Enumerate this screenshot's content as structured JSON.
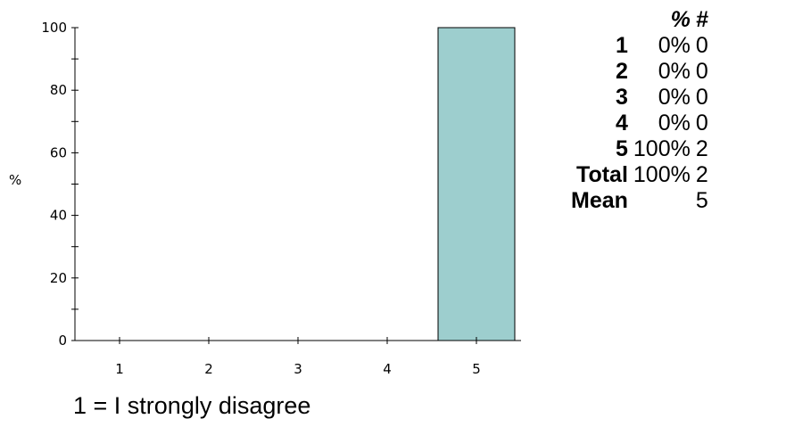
{
  "chart_data": {
    "type": "bar",
    "categories": [
      "1",
      "2",
      "3",
      "4",
      "5"
    ],
    "values": [
      0,
      0,
      0,
      0,
      100
    ],
    "ylabel": "%",
    "xlabel": "",
    "ylim": [
      0,
      100
    ],
    "yticks": [
      "0",
      "20",
      "40",
      "60",
      "80",
      "100"
    ],
    "bar_color": "#9dcece",
    "grid": false
  },
  "table": {
    "header": {
      "percent": "%",
      "count": "#"
    },
    "rows": [
      {
        "label": "1",
        "percent": "0%",
        "count": "0"
      },
      {
        "label": "2",
        "percent": "0%",
        "count": "0"
      },
      {
        "label": "3",
        "percent": "0%",
        "count": "0"
      },
      {
        "label": "4",
        "percent": "0%",
        "count": "0"
      },
      {
        "label": "5",
        "percent": "100%",
        "count": "2"
      }
    ],
    "total": {
      "label": "Total",
      "percent": "100%",
      "count": "2"
    },
    "mean": {
      "label": "Mean",
      "value": "5"
    }
  },
  "note": "1 = I strongly disagree"
}
